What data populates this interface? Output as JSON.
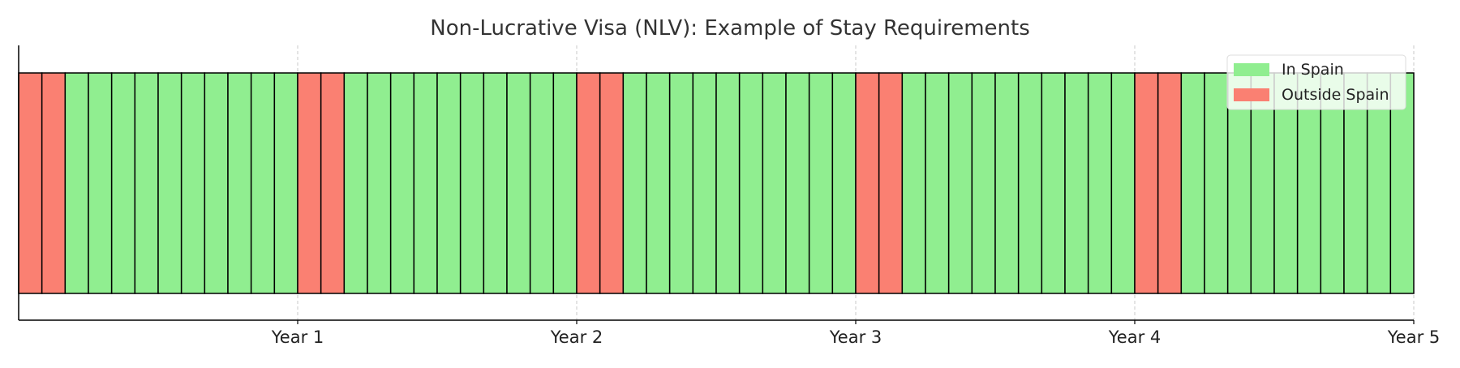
{
  "chart_data": {
    "type": "bar",
    "title": "Non-Lucrative Visa (NLV): Example of Stay Requirements",
    "xlabel": "",
    "ylabel": "",
    "x_range": [
      0,
      5
    ],
    "periods_per_year": 12,
    "ticks": [
      {
        "value": 1,
        "label": "Year 1"
      },
      {
        "value": 2,
        "label": "Year 2"
      },
      {
        "value": 3,
        "label": "Year 3"
      },
      {
        "value": 4,
        "label": "Year 4"
      },
      {
        "value": 5,
        "label": "Year 5"
      }
    ],
    "grid": {
      "vertical": true,
      "style": "dashed"
    },
    "legend_position": "top-right",
    "series": [
      {
        "name": "In Spain",
        "color": "#90ee90",
        "key": "in"
      },
      {
        "name": "Outside Spain",
        "color": "#fa8072",
        "key": "out"
      }
    ],
    "months_status": [
      "out",
      "out",
      "in",
      "in",
      "in",
      "in",
      "in",
      "in",
      "in",
      "in",
      "in",
      "in",
      "out",
      "out",
      "in",
      "in",
      "in",
      "in",
      "in",
      "in",
      "in",
      "in",
      "in",
      "in",
      "out",
      "out",
      "in",
      "in",
      "in",
      "in",
      "in",
      "in",
      "in",
      "in",
      "in",
      "in",
      "out",
      "out",
      "in",
      "in",
      "in",
      "in",
      "in",
      "in",
      "in",
      "in",
      "in",
      "in",
      "out",
      "out",
      "in",
      "in",
      "in",
      "in",
      "in",
      "in",
      "in",
      "in",
      "in",
      "in"
    ]
  }
}
